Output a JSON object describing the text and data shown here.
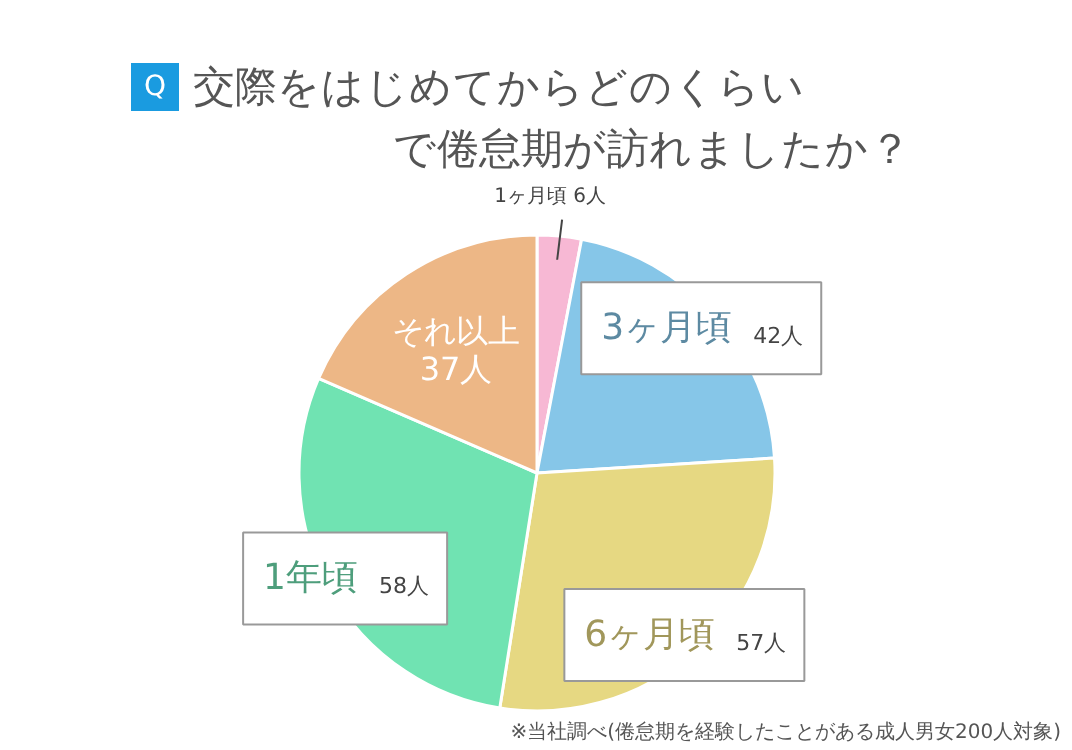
{
  "chart_data": {
    "type": "pie",
    "title": "交際をはじめてからどのくらいで倦怠期が訪れましたか？",
    "categories": [
      "1ヶ月頃",
      "3ヶ月頃",
      "6ヶ月頃",
      "1年頃",
      "それ以上"
    ],
    "values": [
      6,
      42,
      57,
      58,
      37
    ],
    "colors": [
      "#f7b8d4",
      "#86c6e8",
      "#e6d882",
      "#70e3b2",
      "#edb786"
    ],
    "value_labels": [
      "6人",
      "42人",
      "57人",
      "58人",
      "37人"
    ],
    "annotations": [
      "Q",
      "※当社調べ(倦怠期を経験したことがある成人男女200人対象)"
    ]
  }
}
